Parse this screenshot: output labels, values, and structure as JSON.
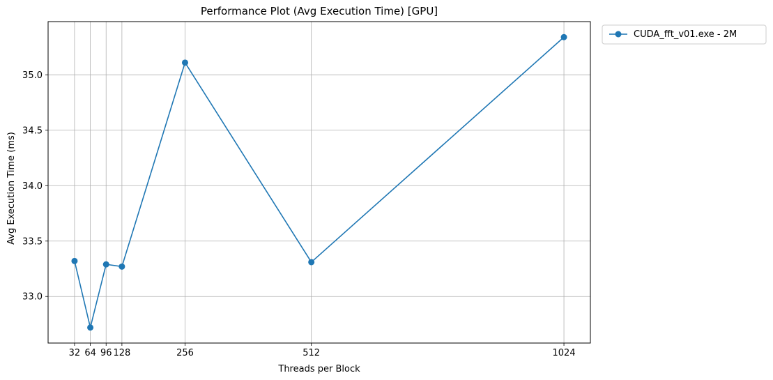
{
  "chart_data": {
    "type": "line",
    "title": "Performance Plot (Avg Execution Time) [GPU]",
    "xlabel": "Threads per Block",
    "ylabel": "Avg Execution Time (ms)",
    "x": [
      32,
      64,
      96,
      128,
      256,
      512,
      1024
    ],
    "x_tick_labels": [
      "32",
      "64",
      "96",
      "128",
      "256",
      "512",
      "1024"
    ],
    "y_ticks": [
      33.0,
      33.5,
      34.0,
      34.5,
      35.0
    ],
    "y_tick_labels": [
      "33.0",
      "33.5",
      "34.0",
      "34.5",
      "35.0"
    ],
    "xlim": [
      -21.6,
      1077.6
    ],
    "ylim": [
      32.58,
      35.48
    ],
    "grid": true,
    "legend_position": "outside-top-right",
    "series": [
      {
        "name": "CUDA_fft_v01.exe - 2M",
        "color": "#1f77b4",
        "marker": "circle",
        "values": [
          33.32,
          32.72,
          33.29,
          33.27,
          35.11,
          33.31,
          35.34
        ]
      }
    ]
  }
}
